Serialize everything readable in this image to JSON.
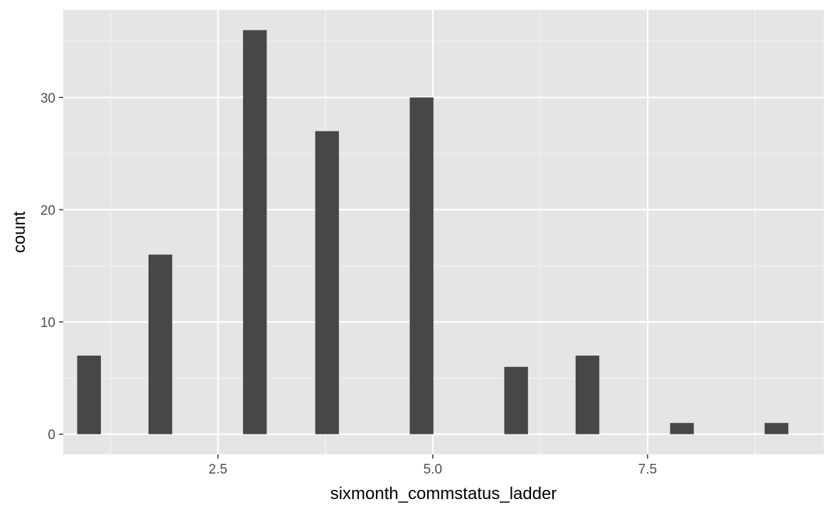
{
  "chart_data": {
    "type": "bar",
    "subtype": "histogram",
    "xlabel": "sixmonth_commstatus_ladder",
    "ylabel": "count",
    "xlim": [
      0.7,
      9.55
    ],
    "ylim": [
      -1.8,
      37.8
    ],
    "xticks": [
      2.5,
      5.0,
      7.5
    ],
    "xtick_labels": [
      "2.5",
      "5.0",
      "7.5"
    ],
    "yticks": [
      0,
      10,
      20,
      30
    ],
    "ytick_labels": [
      "0",
      "10",
      "20",
      "30"
    ],
    "bin_width": 0.276,
    "x": [
      1.0,
      1.83,
      2.93,
      3.77,
      4.87,
      5.97,
      6.8,
      7.9,
      9.0
    ],
    "values": [
      7,
      16,
      36,
      27,
      30,
      6,
      7,
      1,
      1
    ],
    "grid": true,
    "legend": "none",
    "colors": {
      "bar": "#474747",
      "panel_background": "#e5e5e5",
      "grid_major": "#ffffff",
      "grid_minor": "#f2f2f2"
    }
  }
}
